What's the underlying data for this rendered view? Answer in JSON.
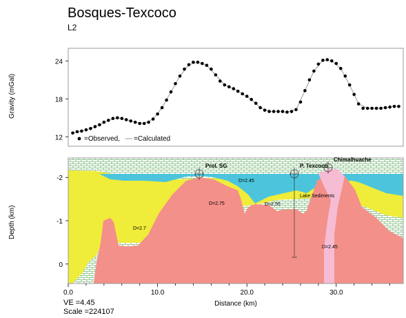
{
  "header": {
    "title": "Bosques-Texcoco",
    "subtitle": "L2"
  },
  "footer": {
    "ve": "VE =4.45",
    "scale": "Scale =224107"
  },
  "colors": {
    "water": "#4cc5dc",
    "yellow": "#f0ec3a",
    "red": "#f39089",
    "pink": "#f6bcd4",
    "green": "#3c9a3c"
  },
  "chart_data": [
    {
      "type": "scatter",
      "ylabel": "Gravity (mGal)",
      "yticks": [
        "24",
        "18",
        "12"
      ],
      "ylim": [
        10.5,
        26
      ],
      "xlim": [
        0,
        37.5
      ],
      "legend": {
        "observed": "=Observed,",
        "calculated": "=Calculated",
        "placement": "bottom-left"
      },
      "series": [
        {
          "name": "Observed",
          "x": [
            0.5,
            1,
            1.5,
            2,
            2.5,
            3,
            3.5,
            4,
            4.5,
            5,
            5.5,
            6,
            6.5,
            7,
            7.5,
            8,
            8.5,
            9,
            9.5,
            10,
            10.5,
            11,
            11.5,
            12,
            12.5,
            13,
            13.5,
            14,
            14.5,
            15,
            15.5,
            16,
            16.5,
            17,
            17.5,
            18,
            18.5,
            19,
            19.5,
            20,
            20.5,
            21,
            21.5,
            22,
            22.5,
            23,
            23.5,
            24,
            24.5,
            25,
            25.5,
            26,
            26.5,
            27,
            27.5,
            28,
            28.5,
            29,
            29.5,
            30,
            30.5,
            31,
            31.5,
            32,
            32.5,
            33,
            33.5,
            34,
            34.5,
            35,
            35.5,
            36,
            36.5,
            37
          ],
          "values": [
            12.6,
            12.8,
            12.9,
            13.1,
            13.3,
            13.6,
            13.9,
            14.3,
            14.6,
            14.9,
            15.0,
            14.9,
            14.7,
            14.5,
            14.3,
            14.1,
            14.1,
            14.3,
            14.8,
            15.6,
            16.6,
            17.8,
            19.1,
            20.4,
            21.6,
            22.7,
            23.4,
            23.8,
            23.8,
            23.6,
            23.3,
            22.7,
            21.8,
            20.8,
            20.2,
            19.9,
            19.6,
            19.2,
            18.8,
            18.4,
            17.9,
            17.3,
            16.6,
            16.2,
            16.0,
            16.0,
            16.0,
            16.0,
            15.9,
            16.0,
            16.3,
            17.5,
            19.3,
            21.0,
            22.4,
            23.5,
            24.1,
            24.2,
            24.0,
            23.6,
            22.8,
            21.6,
            20.2,
            18.7,
            17.2,
            16.5,
            16.5,
            16.5,
            16.5,
            16.5,
            16.6,
            16.7,
            16.8,
            16.8
          ]
        },
        {
          "name": "Calculated",
          "x": [
            0.5,
            1.5,
            2.5,
            3.5,
            4.5,
            5.5,
            6.5,
            7.5,
            8.5,
            9.5,
            10.5,
            11.5,
            12.5,
            13.5,
            14.5,
            15.5,
            16.5,
            17.5,
            18.5,
            19.5,
            20.5,
            21.5,
            22.5,
            23.5,
            24.5,
            25.5,
            26.5,
            27.5,
            28.5,
            29.5,
            30.5,
            31.5,
            32.5,
            33.5,
            34.5,
            35.5,
            36.5,
            37
          ],
          "values": [
            12.6,
            12.9,
            13.3,
            13.9,
            14.6,
            15.0,
            14.7,
            14.3,
            14.1,
            14.8,
            16.6,
            19.1,
            21.6,
            23.4,
            23.8,
            23.3,
            21.8,
            20.2,
            19.6,
            18.8,
            17.9,
            16.6,
            16.0,
            16.0,
            15.9,
            16.3,
            19.3,
            22.4,
            24.1,
            24.0,
            22.8,
            20.2,
            17.2,
            16.5,
            16.5,
            16.6,
            16.8,
            16.8
          ]
        }
      ]
    },
    {
      "type": "area",
      "title": "",
      "xlabel": "Distance (km)",
      "ylabel": "Depth (km)",
      "xticks": [
        "0.0",
        "10.0",
        "20.0",
        "30.0"
      ],
      "yticks": [
        "-2",
        "-1",
        "0"
      ],
      "xlim": [
        0,
        37.5
      ],
      "ylim": [
        -2.45,
        0.45
      ],
      "stations": [
        "Prol. SG",
        "P. Texcoco",
        "Chimalhuache"
      ],
      "bodies": [
        "D=2.45",
        "D=2.75",
        "D=2.55",
        "D=2.7",
        "Lake Sediments",
        "D=2.45"
      ]
    }
  ]
}
